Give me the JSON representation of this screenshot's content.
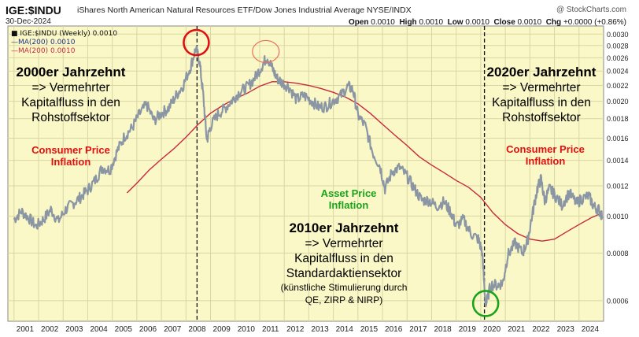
{
  "header": {
    "ticker": "IGE:$INDU",
    "subtitle": "iShares North American Natural Resources ETF/Dow Jones Industrial Average  NYSE/INDX",
    "date": "30-Dec-2024",
    "credit": "@ StockCharts.com",
    "open_label": "Open",
    "open": "0.0010",
    "high_label": "High",
    "high": "0.0010",
    "low_label": "Low",
    "low": "0.0010",
    "close_label": "Close",
    "close": "0.0010",
    "chg_label": "Chg",
    "chg": "+0.0000 (+0.86%)"
  },
  "legend": {
    "price": "IGE:$INDU (Weekly) 0.0010",
    "ma1": "MA(200) 0.0010",
    "ma2": "MA(200) 0.0010"
  },
  "annotations": {
    "a2000": {
      "title": "2000er Jahrzehnt",
      "l1": "=> Vermehrter",
      "l2": "Kapitalfluss in den",
      "l3": "Rohstoffsektor"
    },
    "cpi1": {
      "l1": "Consumer Price",
      "l2": "Inflation"
    },
    "asset": {
      "l1": "Asset Price",
      "l2": "Inflation"
    },
    "a2010": {
      "title": "2010er Jahrzehnt",
      "l1": "=> Vermehrter",
      "l2": "Kapitalfluss in den",
      "l3": "Standardaktiensektor",
      "l4": "(künstliche Stimulierung durch",
      "l5": "QE, ZIRP & NIRP)"
    },
    "a2020": {
      "title": "2020er Jahrzehnt",
      "l1": "=> Vermehrter",
      "l2": "Kapitalfluss in den",
      "l3": "Rohstoffsektor"
    },
    "cpi2": {
      "l1": "Consumer Price",
      "l2": "Inflation"
    }
  },
  "chart_data": {
    "type": "line",
    "title": "IGE:$INDU iShares North American Natural Resources ETF/Dow Jones Industrial Average",
    "yscale": "log",
    "ylim": [
      0.00053,
      0.00315
    ],
    "xlim": [
      2000.75,
      2025.0
    ],
    "y_ticks": [
      "0.0006",
      "0.0008",
      "0.0010",
      "0.0012",
      "0.0014",
      "0.0016",
      "0.0018",
      "0.0020",
      "0.0022",
      "0.0024",
      "0.0026",
      "0.0028",
      "0.0030"
    ],
    "y_tick_values": [
      0.0006,
      0.0008,
      0.001,
      0.0012,
      0.0014,
      0.0016,
      0.0018,
      0.002,
      0.0022,
      0.0024,
      0.0026,
      0.0028,
      0.003
    ],
    "x_ticks": [
      "2001",
      "2002",
      "2003",
      "2004",
      "2005",
      "2006",
      "2007",
      "2008",
      "2009",
      "2010",
      "2011",
      "2012",
      "2013",
      "2014",
      "2015",
      "2016",
      "2017",
      "2018",
      "2019",
      "2020",
      "2021",
      "2022",
      "2023",
      "2024"
    ],
    "x_tick_values": [
      2001,
      2002,
      2003,
      2004,
      2005,
      2006,
      2007,
      2008,
      2009,
      2010,
      2011,
      2012,
      2013,
      2014,
      2015,
      2016,
      2017,
      2018,
      2019,
      2020,
      2021,
      2022,
      2023,
      2024
    ],
    "series": [
      {
        "name": "IGE:$INDU (Weekly)",
        "color": "#8a96a4",
        "points": [
          [
            2001.0,
            0.00098
          ],
          [
            2001.3,
            0.00103
          ],
          [
            2001.6,
            0.00099
          ],
          [
            2001.9,
            0.00094
          ],
          [
            2002.2,
            0.00098
          ],
          [
            2002.5,
            0.00104
          ],
          [
            2002.8,
            0.00097
          ],
          [
            2003.1,
            0.00104
          ],
          [
            2003.4,
            0.00108
          ],
          [
            2003.7,
            0.00112
          ],
          [
            2004.0,
            0.00117
          ],
          [
            2004.3,
            0.00124
          ],
          [
            2004.6,
            0.00134
          ],
          [
            2004.9,
            0.00132
          ],
          [
            2005.2,
            0.00148
          ],
          [
            2005.5,
            0.00162
          ],
          [
            2005.8,
            0.0017
          ],
          [
            2006.1,
            0.00185
          ],
          [
            2006.4,
            0.00196
          ],
          [
            2006.7,
            0.00178
          ],
          [
            2007.0,
            0.00186
          ],
          [
            2007.3,
            0.00192
          ],
          [
            2007.6,
            0.00207
          ],
          [
            2007.9,
            0.00221
          ],
          [
            2008.2,
            0.00248
          ],
          [
            2008.4,
            0.00275
          ],
          [
            2008.55,
            0.00255
          ],
          [
            2008.7,
            0.00208
          ],
          [
            2008.85,
            0.00158
          ],
          [
            2009.0,
            0.00172
          ],
          [
            2009.3,
            0.00185
          ],
          [
            2009.6,
            0.00192
          ],
          [
            2009.9,
            0.00202
          ],
          [
            2010.2,
            0.00212
          ],
          [
            2010.5,
            0.00218
          ],
          [
            2010.8,
            0.0023
          ],
          [
            2011.1,
            0.00248
          ],
          [
            2011.3,
            0.00262
          ],
          [
            2011.5,
            0.00245
          ],
          [
            2011.7,
            0.0023
          ],
          [
            2011.9,
            0.00224
          ],
          [
            2012.2,
            0.00218
          ],
          [
            2012.5,
            0.00202
          ],
          [
            2012.8,
            0.00207
          ],
          [
            2013.1,
            0.00201
          ],
          [
            2013.4,
            0.00193
          ],
          [
            2013.7,
            0.00194
          ],
          [
            2014.0,
            0.00201
          ],
          [
            2014.3,
            0.00207
          ],
          [
            2014.6,
            0.00219
          ],
          [
            2014.8,
            0.00214
          ],
          [
            2015.0,
            0.00184
          ],
          [
            2015.3,
            0.00172
          ],
          [
            2015.6,
            0.00147
          ],
          [
            2015.9,
            0.00135
          ],
          [
            2016.1,
            0.00118
          ],
          [
            2016.4,
            0.00131
          ],
          [
            2016.7,
            0.00134
          ],
          [
            2017.0,
            0.00127
          ],
          [
            2017.3,
            0.00118
          ],
          [
            2017.6,
            0.0011
          ],
          [
            2017.9,
            0.0011
          ],
          [
            2018.2,
            0.00106
          ],
          [
            2018.5,
            0.00109
          ],
          [
            2018.8,
            0.00102
          ],
          [
            2019.0,
            0.00094
          ],
          [
            2019.3,
            0.00098
          ],
          [
            2019.6,
            0.0009
          ],
          [
            2019.9,
            0.00087
          ],
          [
            2020.05,
            0.00081
          ],
          [
            2020.2,
            0.00058
          ],
          [
            2020.4,
            0.00066
          ],
          [
            2020.7,
            0.00066
          ],
          [
            2020.9,
            0.00067
          ],
          [
            2021.1,
            0.00079
          ],
          [
            2021.4,
            0.00085
          ],
          [
            2021.7,
            0.0008
          ],
          [
            2021.9,
            0.00086
          ],
          [
            2022.1,
            0.00101
          ],
          [
            2022.3,
            0.00118
          ],
          [
            2022.45,
            0.00125
          ],
          [
            2022.6,
            0.0011
          ],
          [
            2022.8,
            0.00118
          ],
          [
            2023.0,
            0.00114
          ],
          [
            2023.3,
            0.00107
          ],
          [
            2023.6,
            0.00115
          ],
          [
            2023.9,
            0.00108
          ],
          [
            2024.1,
            0.00111
          ],
          [
            2024.4,
            0.00113
          ],
          [
            2024.6,
            0.00106
          ],
          [
            2024.8,
            0.00104
          ],
          [
            2024.95,
            0.001
          ]
        ]
      },
      {
        "name": "MA(200)",
        "color": "#c8283c",
        "points": [
          [
            2005.6,
            0.00115
          ],
          [
            2006.0,
            0.00122
          ],
          [
            2006.5,
            0.00132
          ],
          [
            2007.0,
            0.00141
          ],
          [
            2007.5,
            0.0015
          ],
          [
            2008.0,
            0.00161
          ],
          [
            2008.5,
            0.00174
          ],
          [
            2009.0,
            0.00186
          ],
          [
            2009.5,
            0.00195
          ],
          [
            2010.0,
            0.00203
          ],
          [
            2010.5,
            0.0021
          ],
          [
            2011.0,
            0.00219
          ],
          [
            2011.5,
            0.00225
          ],
          [
            2012.0,
            0.00225
          ],
          [
            2012.5,
            0.00223
          ],
          [
            2013.0,
            0.0022
          ],
          [
            2013.5,
            0.00216
          ],
          [
            2014.0,
            0.00211
          ],
          [
            2014.5,
            0.00205
          ],
          [
            2015.0,
            0.00197
          ],
          [
            2015.5,
            0.00186
          ],
          [
            2016.0,
            0.00174
          ],
          [
            2016.5,
            0.00163
          ],
          [
            2017.0,
            0.00153
          ],
          [
            2017.5,
            0.00143
          ],
          [
            2018.0,
            0.00136
          ],
          [
            2018.5,
            0.0013
          ],
          [
            2019.0,
            0.00124
          ],
          [
            2019.5,
            0.00119
          ],
          [
            2020.0,
            0.00112
          ],
          [
            2020.5,
            0.00102
          ],
          [
            2021.0,
            0.00095
          ],
          [
            2021.5,
            0.0009
          ],
          [
            2022.0,
            0.00087
          ],
          [
            2022.5,
            0.00086
          ],
          [
            2023.0,
            0.00087
          ],
          [
            2023.5,
            0.00091
          ],
          [
            2024.0,
            0.00095
          ],
          [
            2024.5,
            0.00099
          ],
          [
            2024.95,
            0.00102
          ]
        ]
      }
    ],
    "vlines": [
      2008.45,
      2020.15
    ],
    "markers": [
      {
        "name": "2008-peak",
        "x": 2008.42,
        "y": 0.00285,
        "color": "#e01010"
      },
      {
        "name": "2011-peak",
        "x": 2011.25,
        "y": 0.0027,
        "color": "#e8705a"
      },
      {
        "name": "2020-low",
        "x": 2020.2,
        "y": 0.00059,
        "color": "#1aa31a"
      }
    ]
  }
}
